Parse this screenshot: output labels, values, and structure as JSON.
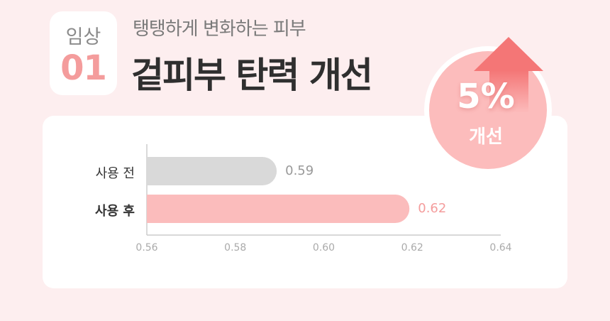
{
  "badge": {
    "label": "임상",
    "number": "01"
  },
  "subtitle": "탱탱하게 변화하는 피부",
  "title": "겉피부 탄력 개선",
  "highlight": {
    "value": "5%",
    "label": "개선",
    "icon": "arrow-up-icon"
  },
  "colors": {
    "background": "#fdeeef",
    "before_bar": "#d9d9d9",
    "after_bar": "#fbbcbc",
    "accent": "#f47676"
  },
  "chart_data": {
    "type": "bar",
    "orientation": "horizontal",
    "categories": [
      "사용 전",
      "사용 후"
    ],
    "values": [
      0.59,
      0.62
    ],
    "value_labels": [
      "0.59",
      "0.62"
    ],
    "xlim": [
      0.56,
      0.64
    ],
    "xticks": [
      "0.56",
      "0.58",
      "0.60",
      "0.62",
      "0.64"
    ],
    "grid": false
  }
}
